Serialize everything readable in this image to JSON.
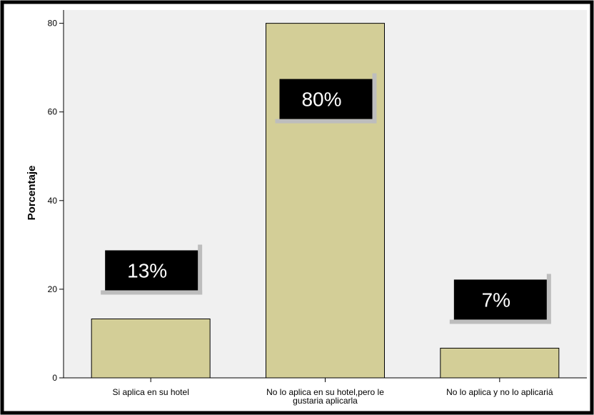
{
  "chart_data": {
    "type": "bar",
    "title": "",
    "xlabel": "",
    "ylabel": "Porcentaje",
    "ylim": [
      0,
      83
    ],
    "yticks": [
      0,
      20,
      40,
      60,
      80
    ],
    "grid": false,
    "categories": [
      [
        "Si aplica en su hotel"
      ],
      [
        "No lo aplica en su hotel,pero le",
        "gustaria aplicarla"
      ],
      [
        "No lo aplica y no lo aplicariá"
      ]
    ],
    "values": [
      13.3,
      80,
      6.7
    ],
    "data_labels": [
      "13%",
      "80%",
      "7%"
    ],
    "colors": {
      "bar_fill": "#D3CE97",
      "bar_stroke": "#000000",
      "plot_background": "#F0F0F0",
      "frame": "#000000",
      "label_box": "#000000",
      "label_text": "#FFFFFF",
      "label_shadow": "#BDBDBD"
    }
  }
}
